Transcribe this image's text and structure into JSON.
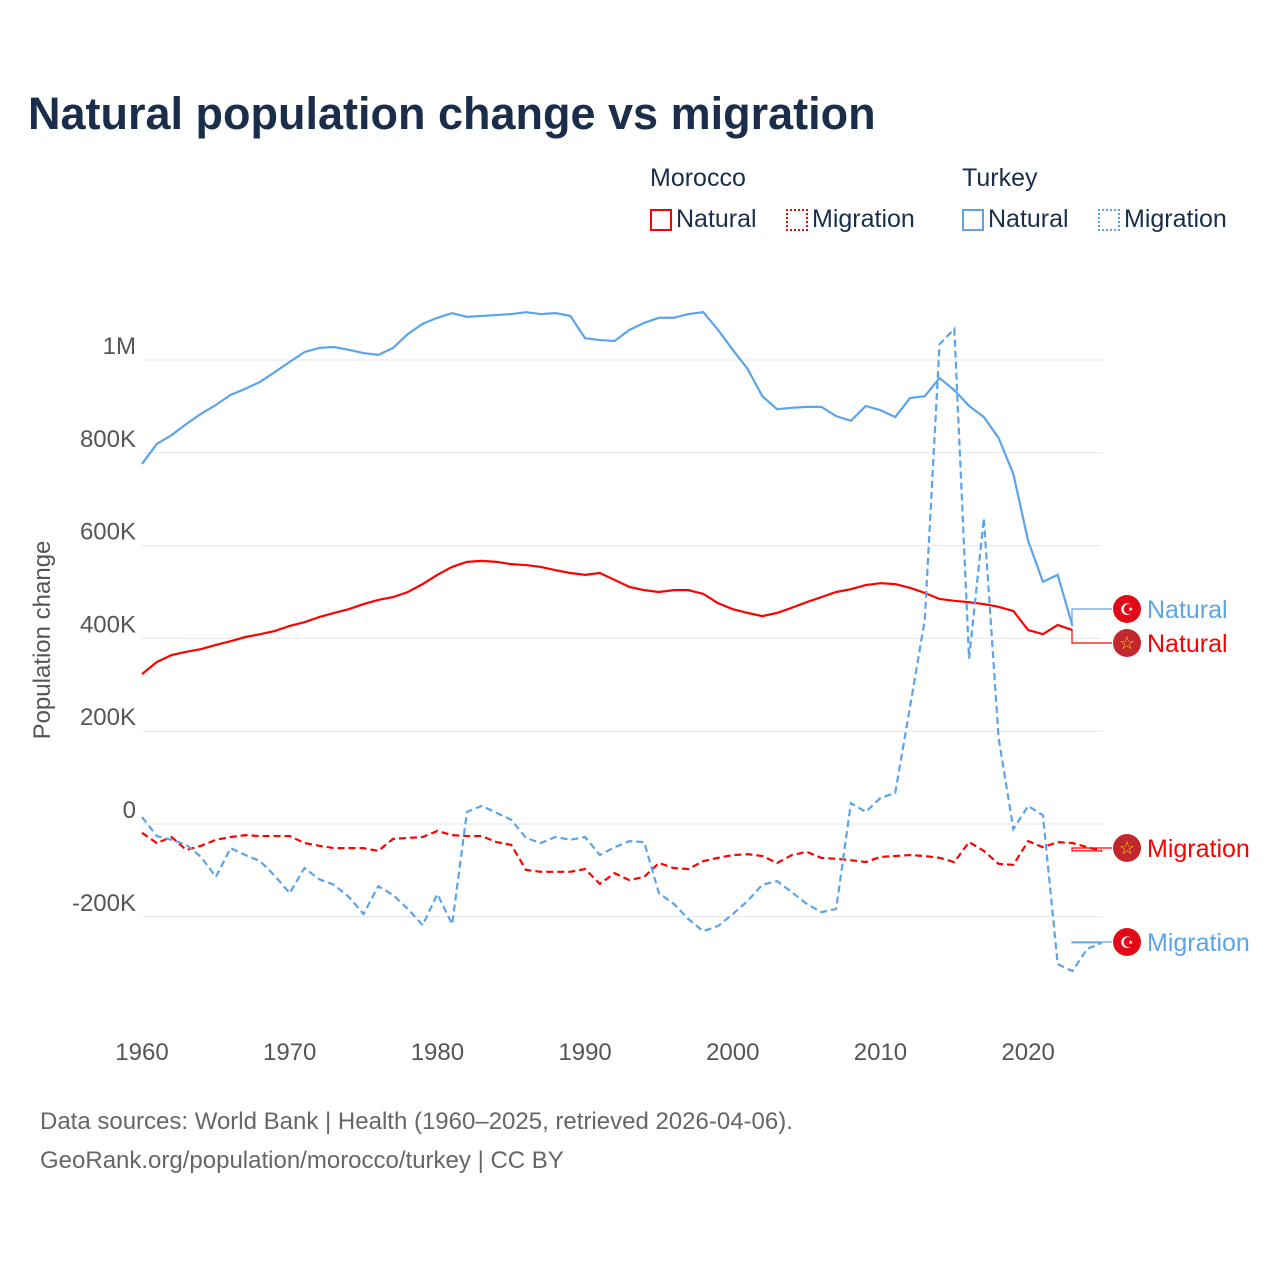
{
  "title": "Natural population change vs migration",
  "legend": {
    "groups": [
      {
        "name": "Morocco",
        "natural": "Natural",
        "migration": "Migration"
      },
      {
        "name": "Turkey",
        "natural": "Natural",
        "migration": "Migration"
      }
    ]
  },
  "colors": {
    "morocco": "#ff0000",
    "turkey": "#5ba4ea"
  },
  "sources": [
    "Data sources: World Bank | Health (1960–2025, retrieved 2026-04-06).",
    "GeoRank.org/population/morocco/turkey | CC BY"
  ],
  "chart_data": {
    "type": "line",
    "title": "Natural population change vs migration",
    "ylabel": "Population change",
    "xlim": [
      1960,
      2025
    ],
    "ylim": [
      -350000,
      1150000
    ],
    "x_ticks": [
      1960,
      1970,
      1980,
      1990,
      2000,
      2010,
      2020
    ],
    "y_ticks": [
      {
        "v": -200000,
        "label": "-200K"
      },
      {
        "v": 0,
        "label": "0"
      },
      {
        "v": 200000,
        "label": "200K"
      },
      {
        "v": 400000,
        "label": "400K"
      },
      {
        "v": 600000,
        "label": "600K"
      },
      {
        "v": 800000,
        "label": "800K"
      },
      {
        "v": 1000000,
        "label": "1M"
      }
    ],
    "grid": true,
    "series": [
      {
        "name": "Turkey Natural",
        "country": "turkey",
        "dash": false,
        "start": 1960,
        "label": "Natural",
        "values": [
          776,
          819,
          838,
          862,
          884,
          903,
          925,
          938,
          953,
          974,
          996,
          1017,
          1026,
          1028,
          1022,
          1015,
          1011,
          1026,
          1056,
          1078,
          1091,
          1101,
          1093,
          1095,
          1097,
          1099,
          1103,
          1099,
          1101,
          1095,
          1047,
          1043,
          1041,
          1065,
          1080,
          1091,
          1091,
          1099,
          1103,
          1065,
          1022,
          981,
          922,
          894,
          897,
          899,
          899,
          879,
          869,
          901,
          892,
          877,
          918,
          922,
          961,
          935,
          901,
          877,
          832,
          754,
          610,
          522,
          537,
          427
        ]
      },
      {
        "name": "Morocco Natural",
        "country": "morocco",
        "dash": false,
        "start": 1960,
        "label": "Natural",
        "values": [
          323,
          349,
          364,
          371,
          377,
          386,
          394,
          403,
          409,
          416,
          427,
          435,
          446,
          455,
          463,
          474,
          483,
          489,
          500,
          517,
          537,
          554,
          565,
          567,
          565,
          560,
          558,
          554,
          547,
          541,
          537,
          541,
          526,
          511,
          504,
          500,
          504,
          504,
          496,
          476,
          463,
          455,
          448,
          455,
          466,
          478,
          489,
          500,
          506,
          515,
          519,
          517,
          509,
          498,
          485,
          481,
          478,
          474,
          468,
          459,
          418,
          409,
          429,
          418
        ]
      },
      {
        "name": "Morocco Migration",
        "country": "morocco",
        "dash": true,
        "start": 1960,
        "label": "Migration",
        "values": [
          -19,
          -41,
          -28,
          -56,
          -47,
          -34,
          -28,
          -24,
          -26,
          -26,
          -26,
          -41,
          -47,
          -52,
          -52,
          -52,
          -58,
          -32,
          -30,
          -28,
          -15,
          -24,
          -26,
          -26,
          -39,
          -45,
          -99,
          -103,
          -103,
          -103,
          -97,
          -129,
          -106,
          -121,
          -114,
          -84,
          -95,
          -97,
          -80,
          -73,
          -67,
          -65,
          -69,
          -84,
          -67,
          -60,
          -73,
          -75,
          -78,
          -82,
          -71,
          -69,
          -67,
          -69,
          -73,
          -82,
          -39,
          -58,
          -86,
          -88,
          -37,
          -50,
          -39,
          -41,
          -50,
          -58
        ]
      },
      {
        "name": "Turkey Migration",
        "country": "turkey",
        "dash": true,
        "start": 1960,
        "label": "Migration",
        "values": [
          15,
          -26,
          -34,
          -45,
          -71,
          -114,
          -52,
          -67,
          -80,
          -112,
          -149,
          -95,
          -119,
          -131,
          -157,
          -194,
          -134,
          -153,
          -183,
          -218,
          -151,
          -216,
          26,
          39,
          24,
          9,
          -30,
          -41,
          -28,
          -34,
          -28,
          -67,
          -50,
          -37,
          -39,
          -149,
          -172,
          -205,
          -231,
          -220,
          -194,
          -166,
          -131,
          -123,
          -147,
          -172,
          -190,
          -183,
          45,
          26,
          56,
          67,
          252,
          440,
          1034,
          1067,
          356,
          659,
          185,
          -11,
          39,
          19,
          -302,
          -317,
          -269,
          -256
        ]
      }
    ],
    "value_unit": "thousands"
  }
}
